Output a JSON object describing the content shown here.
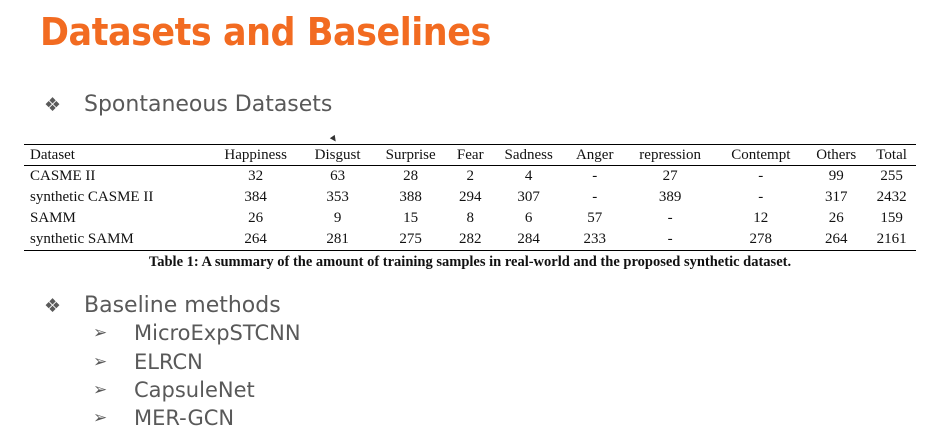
{
  "slide": {
    "title": "Datasets and Baselines",
    "accent_color": "#f26b21",
    "text_color": "#595959",
    "bullets": [
      {
        "icon": "diamond-bullet-icon",
        "glyph": "❖",
        "text": "Spontaneous Datasets"
      },
      {
        "icon": "diamond-bullet-icon",
        "glyph": "❖",
        "text": "Baseline methods"
      }
    ],
    "baseline_methods": [
      {
        "icon": "arrow-bullet-icon",
        "glyph": "➢",
        "text": "MicroExpSTCNN"
      },
      {
        "icon": "arrow-bullet-icon",
        "glyph": "➢",
        "text": "ELRCN"
      },
      {
        "icon": "arrow-bullet-icon",
        "glyph": "➢",
        "text": "CapsuleNet"
      },
      {
        "icon": "arrow-bullet-icon",
        "glyph": "➢",
        "text": "MER-GCN"
      }
    ]
  },
  "table": {
    "headers": [
      "Dataset",
      "Happiness",
      "Disgust",
      "Surprise",
      "Fear",
      "Sadness",
      "Anger",
      "repression",
      "Contempt",
      "Others",
      "Total"
    ],
    "rows": [
      [
        "CASME II",
        "32",
        "63",
        "28",
        "2",
        "4",
        "-",
        "27",
        "-",
        "99",
        "255"
      ],
      [
        "synthetic CASME II",
        "384",
        "353",
        "388",
        "294",
        "307",
        "-",
        "389",
        "-",
        "317",
        "2432"
      ],
      [
        "SAMM",
        "26",
        "9",
        "15",
        "8",
        "6",
        "57",
        "-",
        "12",
        "26",
        "159"
      ],
      [
        "synthetic SAMM",
        "264",
        "281",
        "275",
        "282",
        "284",
        "233",
        "-",
        "278",
        "264",
        "2161"
      ]
    ],
    "caption": "Table 1: A summary of the amount of training samples in real-world and the proposed synthetic dataset."
  }
}
